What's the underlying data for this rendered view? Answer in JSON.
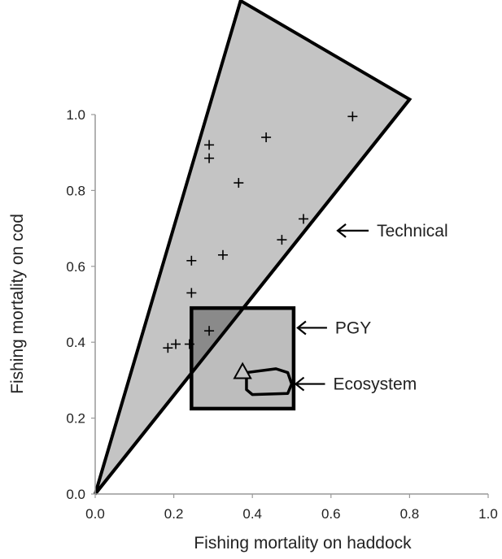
{
  "chart_data": {
    "type": "scatter",
    "title": "",
    "xlabel": "Fishing mortality on haddock",
    "ylabel": "Fishing mortality on cod",
    "xlim": [
      0.0,
      1.0
    ],
    "ylim": [
      0.0,
      1.0
    ],
    "x_ticks": [
      "0.0",
      "0.2",
      "0.4",
      "0.6",
      "0.8",
      "1.0"
    ],
    "y_ticks": [
      "0.0",
      "0.2",
      "0.4",
      "0.6",
      "0.8",
      "1.0"
    ],
    "grid": false,
    "points": [
      {
        "x": 0.185,
        "y": 0.385
      },
      {
        "x": 0.205,
        "y": 0.395
      },
      {
        "x": 0.24,
        "y": 0.395
      },
      {
        "x": 0.29,
        "y": 0.43
      },
      {
        "x": 0.245,
        "y": 0.53
      },
      {
        "x": 0.245,
        "y": 0.615
      },
      {
        "x": 0.325,
        "y": 0.63
      },
      {
        "x": 0.29,
        "y": 0.885
      },
      {
        "x": 0.29,
        "y": 0.92
      },
      {
        "x": 0.365,
        "y": 0.82
      },
      {
        "x": 0.435,
        "y": 0.94
      },
      {
        "x": 0.475,
        "y": 0.67
      },
      {
        "x": 0.53,
        "y": 0.725
      },
      {
        "x": 0.655,
        "y": 0.995
      }
    ],
    "technical_region": {
      "vertices": [
        [
          0.0,
          0.0
        ],
        [
          0.37,
          1.3
        ],
        [
          0.8,
          1.04
        ]
      ],
      "label": "Technical",
      "label_points_to": [
        0.555,
        0.694
      ]
    },
    "pgy_region": {
      "x_range": [
        0.245,
        0.505
      ],
      "y_range": [
        0.225,
        0.49
      ],
      "label": "PGY"
    },
    "ecosystem_region": {
      "label": "Ecosystem",
      "outline": [
        [
          0.385,
          0.32
        ],
        [
          0.46,
          0.33
        ],
        [
          0.49,
          0.32
        ],
        [
          0.5,
          0.29
        ],
        [
          0.49,
          0.265
        ],
        [
          0.4,
          0.262
        ],
        [
          0.385,
          0.275
        ]
      ],
      "marker": {
        "shape": "triangle",
        "x": 0.375,
        "y": 0.32
      }
    }
  }
}
